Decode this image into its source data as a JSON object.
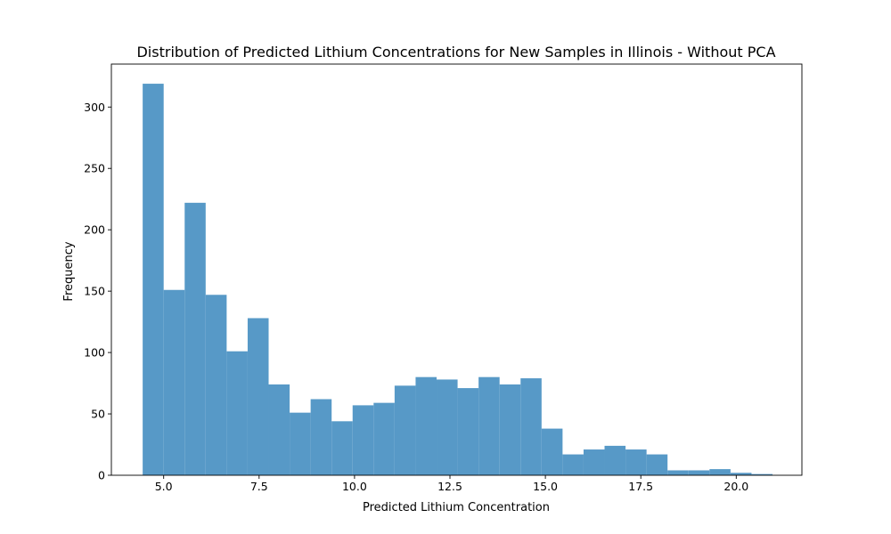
{
  "chart_data": {
    "type": "bar",
    "title": "Distribution of Predicted Lithium Concentrations for New Samples in Illinois - Without PCA",
    "xlabel": "Predicted Lithium Concentration",
    "ylabel": "Frequency",
    "xlim": [
      3.63,
      21.72
    ],
    "ylim": [
      0,
      335
    ],
    "xticks": [
      5.0,
      7.5,
      10.0,
      12.5,
      15.0,
      17.5,
      20.0
    ],
    "xtick_labels": [
      "5.0",
      "7.5",
      "10.0",
      "12.5",
      "15.0",
      "17.5",
      "20.0"
    ],
    "yticks": [
      0,
      50,
      100,
      150,
      200,
      250,
      300
    ],
    "ytick_labels": [
      "0",
      "50",
      "100",
      "150",
      "200",
      "250",
      "300"
    ],
    "bar_color": "#5799c7",
    "grid": false,
    "bins": [
      {
        "x0": 4.45,
        "x1": 5.0,
        "value": 319
      },
      {
        "x0": 5.0,
        "x1": 5.55,
        "value": 151
      },
      {
        "x0": 5.55,
        "x1": 6.1,
        "value": 222
      },
      {
        "x0": 6.1,
        "x1": 6.65,
        "value": 147
      },
      {
        "x0": 6.65,
        "x1": 7.2,
        "value": 101
      },
      {
        "x0": 7.2,
        "x1": 7.75,
        "value": 128
      },
      {
        "x0": 7.75,
        "x1": 8.3,
        "value": 74
      },
      {
        "x0": 8.3,
        "x1": 8.85,
        "value": 51
      },
      {
        "x0": 8.85,
        "x1": 9.4,
        "value": 62
      },
      {
        "x0": 9.4,
        "x1": 9.95,
        "value": 44
      },
      {
        "x0": 9.95,
        "x1": 10.5,
        "value": 57
      },
      {
        "x0": 10.5,
        "x1": 11.05,
        "value": 59
      },
      {
        "x0": 11.05,
        "x1": 11.6,
        "value": 73
      },
      {
        "x0": 11.6,
        "x1": 12.15,
        "value": 80
      },
      {
        "x0": 12.15,
        "x1": 12.7,
        "value": 78
      },
      {
        "x0": 12.7,
        "x1": 13.25,
        "value": 71
      },
      {
        "x0": 13.25,
        "x1": 13.8,
        "value": 80
      },
      {
        "x0": 13.8,
        "x1": 14.35,
        "value": 74
      },
      {
        "x0": 14.35,
        "x1": 14.9,
        "value": 79
      },
      {
        "x0": 14.9,
        "x1": 15.45,
        "value": 38
      },
      {
        "x0": 15.45,
        "x1": 16.0,
        "value": 17
      },
      {
        "x0": 16.0,
        "x1": 16.55,
        "value": 21
      },
      {
        "x0": 16.55,
        "x1": 17.1,
        "value": 24
      },
      {
        "x0": 17.1,
        "x1": 17.65,
        "value": 21
      },
      {
        "x0": 17.65,
        "x1": 18.2,
        "value": 17
      },
      {
        "x0": 18.2,
        "x1": 18.75,
        "value": 4
      },
      {
        "x0": 18.75,
        "x1": 19.3,
        "value": 4
      },
      {
        "x0": 19.3,
        "x1": 19.85,
        "value": 5
      },
      {
        "x0": 19.85,
        "x1": 20.4,
        "value": 2
      },
      {
        "x0": 20.4,
        "x1": 20.95,
        "value": 1
      }
    ]
  }
}
